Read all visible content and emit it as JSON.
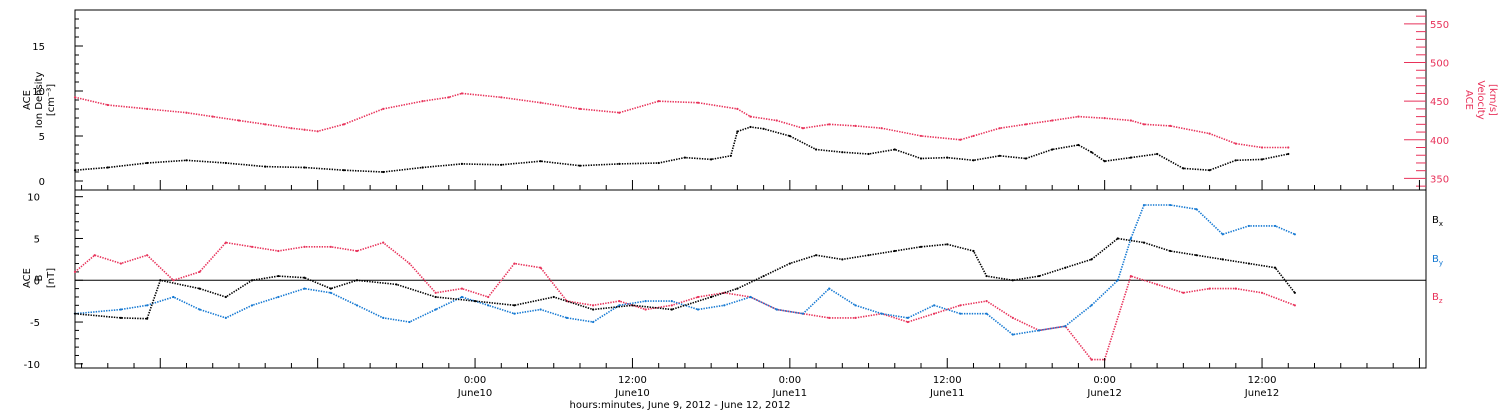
{
  "colors": {
    "black": "#000000",
    "pink": "#e8325a",
    "blue": "#1478d2"
  },
  "x_axis": {
    "title": "hours:minutes, June  9, 2012 - June 12, 2012",
    "start_hours_into_june9": -6.5,
    "end_hours_into_june9": 96.5,
    "ticks": [
      {
        "hours": 24,
        "label": "0:00",
        "date": "June10"
      },
      {
        "hours": 36,
        "label": "12:00",
        "date": "June10"
      },
      {
        "hours": 48,
        "label": "0:00",
        "date": "June11"
      },
      {
        "hours": 60,
        "label": "12:00",
        "date": "June11"
      },
      {
        "hours": 72,
        "label": "0:00",
        "date": "June12"
      },
      {
        "hours": 84,
        "label": "12:00",
        "date": "June12"
      }
    ]
  },
  "chart_data": [
    {
      "type": "scatter",
      "panel": "plasma",
      "ylabel_lines": [
        "ACE",
        "Ion Density",
        "[cm⁻³]"
      ],
      "ylim": [
        -1,
        19
      ],
      "yticks": [
        0,
        5,
        10,
        15
      ],
      "y2label_lines": [
        "ACE",
        "Velocity",
        "[km/s]"
      ],
      "y2lim": [
        335,
        568
      ],
      "y2ticks": [
        350,
        400,
        450,
        500,
        550
      ],
      "series": [
        {
          "id": "density",
          "axis": "left",
          "color": "#000000",
          "x_hours": [
            -6.5,
            -4,
            -1,
            2,
            5,
            8,
            11,
            14,
            17,
            20,
            23,
            26,
            29,
            32,
            35,
            38,
            40,
            42,
            43.5,
            44,
            45,
            46,
            48,
            50,
            52,
            54,
            56,
            58,
            60,
            62,
            64,
            66,
            68,
            70,
            71,
            72,
            74,
            76,
            78,
            80,
            82,
            84,
            86
          ],
          "values": [
            1.2,
            1.5,
            2.0,
            2.3,
            2.0,
            1.6,
            1.5,
            1.2,
            1.0,
            1.5,
            1.9,
            1.8,
            2.2,
            1.7,
            1.9,
            2.0,
            2.6,
            2.4,
            2.8,
            5.5,
            6.0,
            5.8,
            5.0,
            3.5,
            3.2,
            3.0,
            3.5,
            2.5,
            2.6,
            2.3,
            2.8,
            2.5,
            3.5,
            4.0,
            3.2,
            2.2,
            2.6,
            3.0,
            1.4,
            1.2,
            2.3,
            2.4,
            3.0
          ]
        },
        {
          "id": "velocity",
          "axis": "right",
          "color": "#e8325a",
          "x_hours": [
            -6.5,
            -4,
            -1,
            2,
            4,
            6,
            8,
            10,
            11,
            12,
            14,
            17,
            20,
            22,
            23,
            26,
            29,
            32,
            35,
            38,
            41,
            44,
            45,
            47,
            49,
            51,
            53,
            55,
            58,
            61,
            62,
            64,
            66,
            68,
            70,
            72,
            74,
            75,
            77,
            80,
            82,
            84,
            86
          ],
          "values": [
            455,
            445,
            440,
            435,
            430,
            425,
            420,
            415,
            413,
            411,
            420,
            440,
            450,
            455,
            460,
            455,
            448,
            440,
            435,
            450,
            448,
            440,
            430,
            425,
            415,
            420,
            418,
            415,
            405,
            400,
            405,
            415,
            420,
            425,
            430,
            428,
            425,
            420,
            418,
            408,
            395,
            390,
            390
          ]
        }
      ]
    },
    {
      "type": "scatter",
      "panel": "magnetic-field",
      "ylabel_lines": [
        "ACE",
        "B",
        "[nT]"
      ],
      "ylim": [
        -10.5,
        10.8
      ],
      "yticks": [
        -10,
        -5,
        0,
        5,
        10
      ],
      "zero_line": true,
      "series": [
        {
          "name": "Bx",
          "label_text": "B",
          "label_sub": "x",
          "color": "#000000",
          "x_hours": [
            -6.5,
            -3,
            -1,
            0,
            3,
            5,
            7,
            9,
            11,
            13,
            15,
            18,
            21,
            24,
            27,
            30,
            33,
            36,
            39,
            42,
            44,
            46,
            48,
            50,
            52,
            54,
            56,
            58,
            60,
            62,
            63,
            65,
            67,
            69,
            71,
            73,
            75,
            77,
            79,
            81,
            83,
            85,
            86.5
          ],
          "values": [
            -4.0,
            -4.5,
            -4.6,
            0.0,
            -1.0,
            -2.0,
            0.0,
            0.5,
            0.3,
            -1.0,
            0.0,
            -0.5,
            -2.0,
            -2.5,
            -3.0,
            -2.0,
            -3.5,
            -3.0,
            -3.5,
            -2.0,
            -1.0,
            0.5,
            2.0,
            3.0,
            2.5,
            3.0,
            3.5,
            4.0,
            4.3,
            3.5,
            0.5,
            0.0,
            0.5,
            1.5,
            2.5,
            5.0,
            4.5,
            3.5,
            3.0,
            2.5,
            2.0,
            1.5,
            -1.5
          ]
        },
        {
          "name": "By",
          "label_text": "B",
          "label_sub": "y",
          "color": "#1478d2",
          "x_hours": [
            -6.5,
            -3,
            -1,
            1,
            3,
            5,
            7,
            9,
            11,
            13,
            15,
            17,
            19,
            21,
            23,
            25,
            27,
            29,
            31,
            33,
            35,
            37,
            39,
            41,
            43,
            45,
            47,
            49,
            51,
            53,
            55,
            57,
            59,
            61,
            63,
            65,
            67,
            69,
            71,
            73,
            74,
            75,
            77,
            79,
            81,
            83,
            85,
            86.5
          ],
          "values": [
            -4.0,
            -3.5,
            -3.0,
            -2.0,
            -3.5,
            -4.5,
            -3.0,
            -2.0,
            -1.0,
            -1.5,
            -3.0,
            -4.5,
            -5.0,
            -3.5,
            -2.0,
            -3.0,
            -4.0,
            -3.5,
            -4.5,
            -5.0,
            -3.0,
            -2.5,
            -2.5,
            -3.5,
            -3.0,
            -2.0,
            -3.5,
            -4.0,
            -1.0,
            -3.0,
            -4.0,
            -4.5,
            -3.0,
            -4.0,
            -4.0,
            -6.5,
            -6.0,
            -5.5,
            -3.0,
            0.0,
            5.0,
            9.0,
            9.0,
            8.5,
            5.5,
            6.5,
            6.5,
            5.5
          ]
        },
        {
          "name": "Bz",
          "label_text": "B",
          "label_sub": "z",
          "color": "#e8325a",
          "x_hours": [
            -6.5,
            -5,
            -3,
            -1,
            1,
            3,
            5,
            7,
            9,
            11,
            13,
            15,
            17,
            19,
            21,
            23,
            25,
            27,
            29,
            31,
            33,
            35,
            37,
            39,
            41,
            43,
            45,
            47,
            49,
            51,
            53,
            55,
            57,
            59,
            61,
            63,
            65,
            67,
            69,
            71,
            72,
            74,
            76,
            78,
            80,
            82,
            84,
            86.5
          ],
          "values": [
            1.0,
            3.0,
            2.0,
            3.0,
            0.0,
            1.0,
            4.5,
            4.0,
            3.5,
            4.0,
            4.0,
            3.5,
            4.5,
            2.0,
            -1.5,
            -1.0,
            -2.0,
            2.0,
            1.5,
            -2.5,
            -3.0,
            -2.5,
            -3.5,
            -3.0,
            -2.0,
            -1.5,
            -2.0,
            -3.5,
            -4.0,
            -4.5,
            -4.5,
            -4.0,
            -5.0,
            -4.0,
            -3.0,
            -2.5,
            -4.5,
            -6.0,
            -5.5,
            -9.5,
            -9.5,
            0.5,
            -0.5,
            -1.5,
            -1.0,
            -1.0,
            -1.5,
            -3.0
          ]
        }
      ]
    }
  ]
}
